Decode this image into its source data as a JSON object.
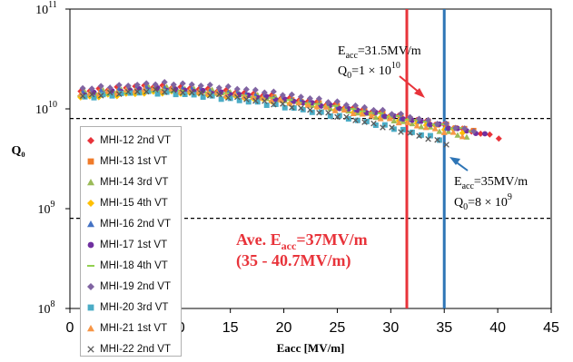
{
  "chart_data": {
    "type": "scatter",
    "title": "",
    "xlabel": "Eacc [MV/m]",
    "ylabel": "Q₀",
    "xlim": [
      0,
      45
    ],
    "ylim_log10": [
      8,
      11
    ],
    "y_scale": "log",
    "x_ticks": [
      "0",
      "5",
      "10",
      "15",
      "20",
      "25",
      "30",
      "35",
      "40",
      "45"
    ],
    "y_ticks": [
      {
        "base": "10",
        "exp": "8"
      },
      {
        "base": "10",
        "exp": "9"
      },
      {
        "base": "10",
        "exp": "10"
      },
      {
        "base": "10",
        "exp": "11"
      }
    ],
    "grid": false,
    "legend_position": "left",
    "reference_lines": [
      {
        "type": "horizontal",
        "y": 8000000000.0,
        "style": "dashed",
        "color": "#000000"
      },
      {
        "type": "horizontal",
        "y": 800000000.0,
        "style": "dashed",
        "color": "#000000"
      },
      {
        "type": "vertical",
        "x": 31.5,
        "color": "#e8333a"
      },
      {
        "type": "vertical",
        "x": 35,
        "color": "#2e75b6"
      }
    ],
    "annotations": {
      "red_spec": {
        "e_label": "E",
        "e_sub": "acc",
        "e_value": "=31.5MV/m",
        "q_label": "Q",
        "q_sub": "0",
        "q_value": "=1 × 10",
        "q_exp": "10"
      },
      "blue_spec": {
        "e_label": "E",
        "e_sub": "acc",
        "e_value": "=35MV/m",
        "q_label": "Q",
        "q_sub": "0",
        "q_value": "=8 × 10",
        "q_exp": "9"
      },
      "average_line1_prefix": "Ave. E",
      "average_line1_sub": "acc",
      "average_line1_suffix": "=37MV/m",
      "average_line2": "(35 - 40.7MV/m)",
      "average_color": "#e8333a"
    },
    "series": [
      {
        "name": "MHI-12 2nd VT",
        "color": "#e8333a",
        "marker": "diamond",
        "start_q": 15000000000.0,
        "end_x": 40.7,
        "end_q": 5000000000.0
      },
      {
        "name": "MHI-13 1st VT",
        "color": "#f07b2a",
        "marker": "square",
        "start_q": 14000000000.0,
        "end_x": 38.5,
        "end_q": 5800000000.0
      },
      {
        "name": "MHI-14 3rd VT",
        "color": "#9bbb59",
        "marker": "triangle",
        "start_q": 14500000000.0,
        "end_x": 37.2,
        "end_q": 5200000000.0
      },
      {
        "name": "MHI-15 4th VT",
        "color": "#ffc000",
        "marker": "diamond",
        "start_q": 13000000000.0,
        "end_x": 37.5,
        "end_q": 5600000000.0
      },
      {
        "name": "MHI-16 2nd VT",
        "color": "#4472c4",
        "marker": "triangle",
        "start_q": 15000000000.0,
        "end_x": 36.8,
        "end_q": 6000000000.0
      },
      {
        "name": "MHI-17 1st VT",
        "color": "#7030a0",
        "marker": "circle",
        "start_q": 14000000000.0,
        "end_x": 38.8,
        "end_q": 5500000000.0
      },
      {
        "name": "MHI-18 4th VT",
        "color": "#92d050",
        "marker": "dash",
        "start_q": 13500000000.0,
        "end_x": 38.0,
        "end_q": 5900000000.0
      },
      {
        "name": "MHI-19 2nd VT",
        "color": "#8064a2",
        "marker": "diamond",
        "start_q": 16000000000.0,
        "end_x": 38.2,
        "end_q": 5800000000.0
      },
      {
        "name": "MHI-20 3rd VT",
        "color": "#4bacc6",
        "marker": "square",
        "start_q": 13000000000.0,
        "end_x": 35.2,
        "end_q": 4800000000.0
      },
      {
        "name": "MHI-21 1st VT",
        "color": "#f79646",
        "marker": "triangle",
        "start_q": 14000000000.0,
        "end_x": 37.0,
        "end_q": 5300000000.0
      },
      {
        "name": "MHI-22 2nd VT",
        "color": "#595959",
        "marker": "cross",
        "start_q": 13500000000.0,
        "end_x": 35.5,
        "end_q": 4400000000.0
      }
    ]
  }
}
